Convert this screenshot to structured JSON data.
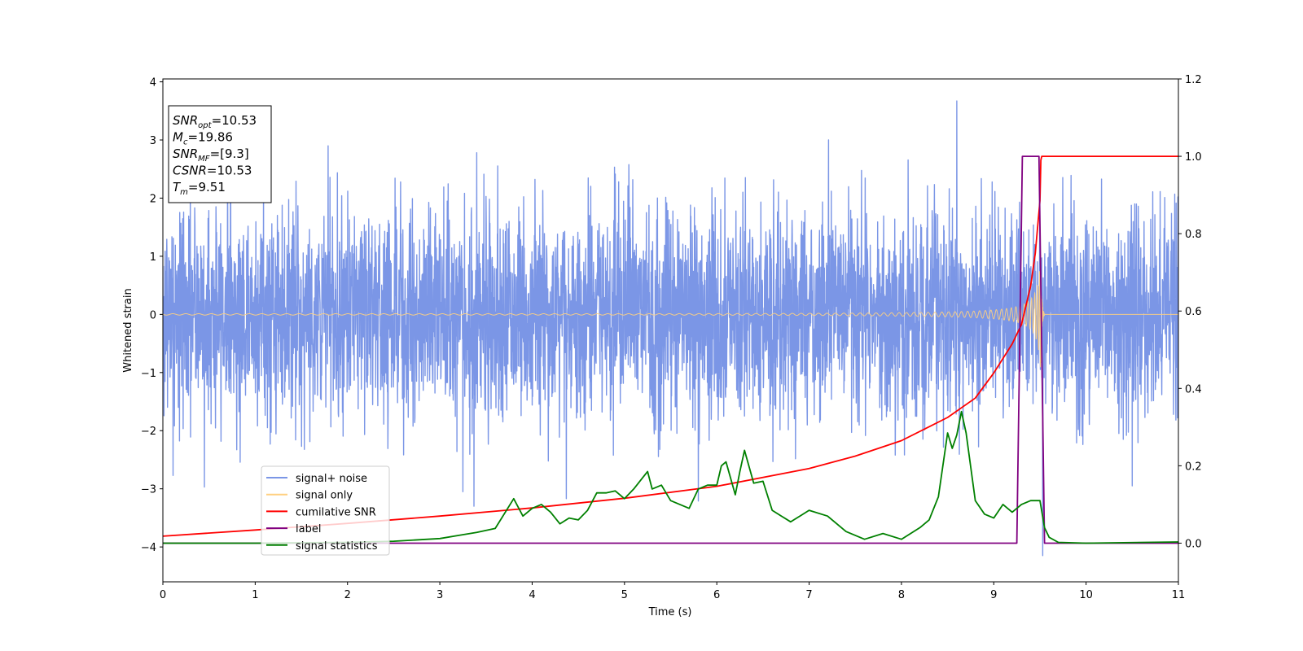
{
  "chart_data": {
    "type": "line",
    "title": "",
    "xlabel": "Time (s)",
    "ylabel": "Whitened strain",
    "xlim": [
      0,
      11
    ],
    "ylim_left": [
      -4.6,
      4.05
    ],
    "ylim_right": [
      -0.1,
      1.2
    ],
    "x_ticks": [
      0,
      1,
      2,
      3,
      4,
      5,
      6,
      7,
      8,
      9,
      10,
      11
    ],
    "y_ticks_left": [
      -4,
      -3,
      -2,
      -1,
      0,
      1,
      2,
      3,
      4
    ],
    "y_ticks_left_labels": [
      "−4",
      "−3",
      "−2",
      "−1",
      "0",
      "1",
      "2",
      "3",
      "4"
    ],
    "y_ticks_right": [
      0.0,
      0.2,
      0.4,
      0.6,
      0.8,
      1.0,
      1.2
    ],
    "y_ticks_right_labels": [
      "0.0",
      "0.2",
      "0.4",
      "0.6",
      "0.8",
      "1.0",
      "1.2"
    ],
    "grid": false,
    "legend_position": "lower-left",
    "info_box": {
      "position": "upper-left",
      "lines": [
        {
          "main": "SNR",
          "sub": "opt",
          "value": "=10.53"
        },
        {
          "main": "M",
          "sub": "c",
          "value": "=19.86"
        },
        {
          "main": "SNR",
          "sub": "MF",
          "value": "=[9.3]"
        },
        {
          "main": "CSNR",
          "sub": "",
          "value": "=10.53"
        },
        {
          "main": "T",
          "sub": "m",
          "value": "=9.51"
        }
      ]
    },
    "series": [
      {
        "name": "signal+ noise",
        "axis": "left",
        "color": "#7b96e6",
        "kind": "noise",
        "noise_sigma": 0.9,
        "noise_envelope": [
          [
            0,
            -2.6,
            2.5
          ],
          [
            2,
            -2.5,
            2.5
          ],
          [
            5,
            -2.7,
            2.6
          ],
          [
            8,
            -2.5,
            2.7
          ],
          [
            11,
            -2.2,
            2.2
          ]
        ],
        "notable_peaks": [
          [
            0.11,
            -2.77
          ],
          [
            0.45,
            -2.97
          ],
          [
            1.79,
            2.9
          ],
          [
            3.25,
            -3.05
          ],
          [
            3.37,
            -3.3
          ],
          [
            3.4,
            2.78
          ],
          [
            4.37,
            -3.17
          ],
          [
            5.8,
            -3.21
          ],
          [
            7.21,
            3.0
          ],
          [
            8.6,
            3.67
          ],
          [
            9.53,
            -4.15
          ],
          [
            10.5,
            -2.95
          ]
        ]
      },
      {
        "name": "signal only",
        "axis": "left",
        "color": "#ffd080",
        "kind": "chirp",
        "merger_time": 9.51,
        "peak_amplitude": 1.05
      },
      {
        "name": "cumilative SNR",
        "axis": "right",
        "color": "#ff0000",
        "x": [
          0,
          1,
          2,
          3,
          4,
          5,
          6,
          7,
          7.5,
          8,
          8.5,
          8.8,
          9.0,
          9.2,
          9.3,
          9.4,
          9.45,
          9.5,
          9.51,
          9.52,
          11
        ],
        "y": [
          0.018,
          0.034,
          0.051,
          0.07,
          0.091,
          0.116,
          0.147,
          0.193,
          0.225,
          0.265,
          0.325,
          0.375,
          0.44,
          0.515,
          0.565,
          0.665,
          0.75,
          0.885,
          0.99,
          1.0,
          1.0
        ]
      },
      {
        "name": "label",
        "axis": "right",
        "color": "#800080",
        "x": [
          0,
          9.25,
          9.31,
          9.49,
          9.55,
          11
        ],
        "y": [
          0.0,
          0.0,
          1.0,
          1.0,
          0.0,
          0.0
        ]
      },
      {
        "name": "signal statistics",
        "axis": "right",
        "color": "#008000",
        "x": [
          0,
          1,
          2,
          2.5,
          3,
          3.2,
          3.4,
          3.6,
          3.8,
          3.9,
          4.0,
          4.1,
          4.2,
          4.3,
          4.4,
          4.5,
          4.6,
          4.7,
          4.8,
          4.9,
          5.0,
          5.1,
          5.2,
          5.25,
          5.3,
          5.4,
          5.5,
          5.6,
          5.7,
          5.8,
          5.9,
          6.0,
          6.05,
          6.1,
          6.2,
          6.25,
          6.3,
          6.4,
          6.5,
          6.6,
          6.7,
          6.8,
          6.9,
          7.0,
          7.2,
          7.4,
          7.6,
          7.8,
          8.0,
          8.2,
          8.3,
          8.4,
          8.5,
          8.55,
          8.6,
          8.65,
          8.7,
          8.8,
          8.9,
          9.0,
          9.1,
          9.2,
          9.3,
          9.4,
          9.5,
          9.55,
          9.6,
          9.7,
          10,
          11
        ],
        "y": [
          0.0,
          0.0,
          0.002,
          0.005,
          0.012,
          0.02,
          0.028,
          0.038,
          0.115,
          0.07,
          0.09,
          0.1,
          0.08,
          0.05,
          0.065,
          0.06,
          0.085,
          0.13,
          0.13,
          0.135,
          0.115,
          0.14,
          0.17,
          0.185,
          0.14,
          0.15,
          0.11,
          0.1,
          0.09,
          0.14,
          0.15,
          0.15,
          0.2,
          0.21,
          0.125,
          0.185,
          0.24,
          0.155,
          0.16,
          0.085,
          0.07,
          0.055,
          0.07,
          0.085,
          0.07,
          0.03,
          0.01,
          0.025,
          0.01,
          0.04,
          0.06,
          0.12,
          0.285,
          0.245,
          0.28,
          0.34,
          0.285,
          0.11,
          0.075,
          0.065,
          0.1,
          0.08,
          0.1,
          0.11,
          0.11,
          0.04,
          0.015,
          0.002,
          0.0,
          0.003
        ]
      }
    ]
  }
}
